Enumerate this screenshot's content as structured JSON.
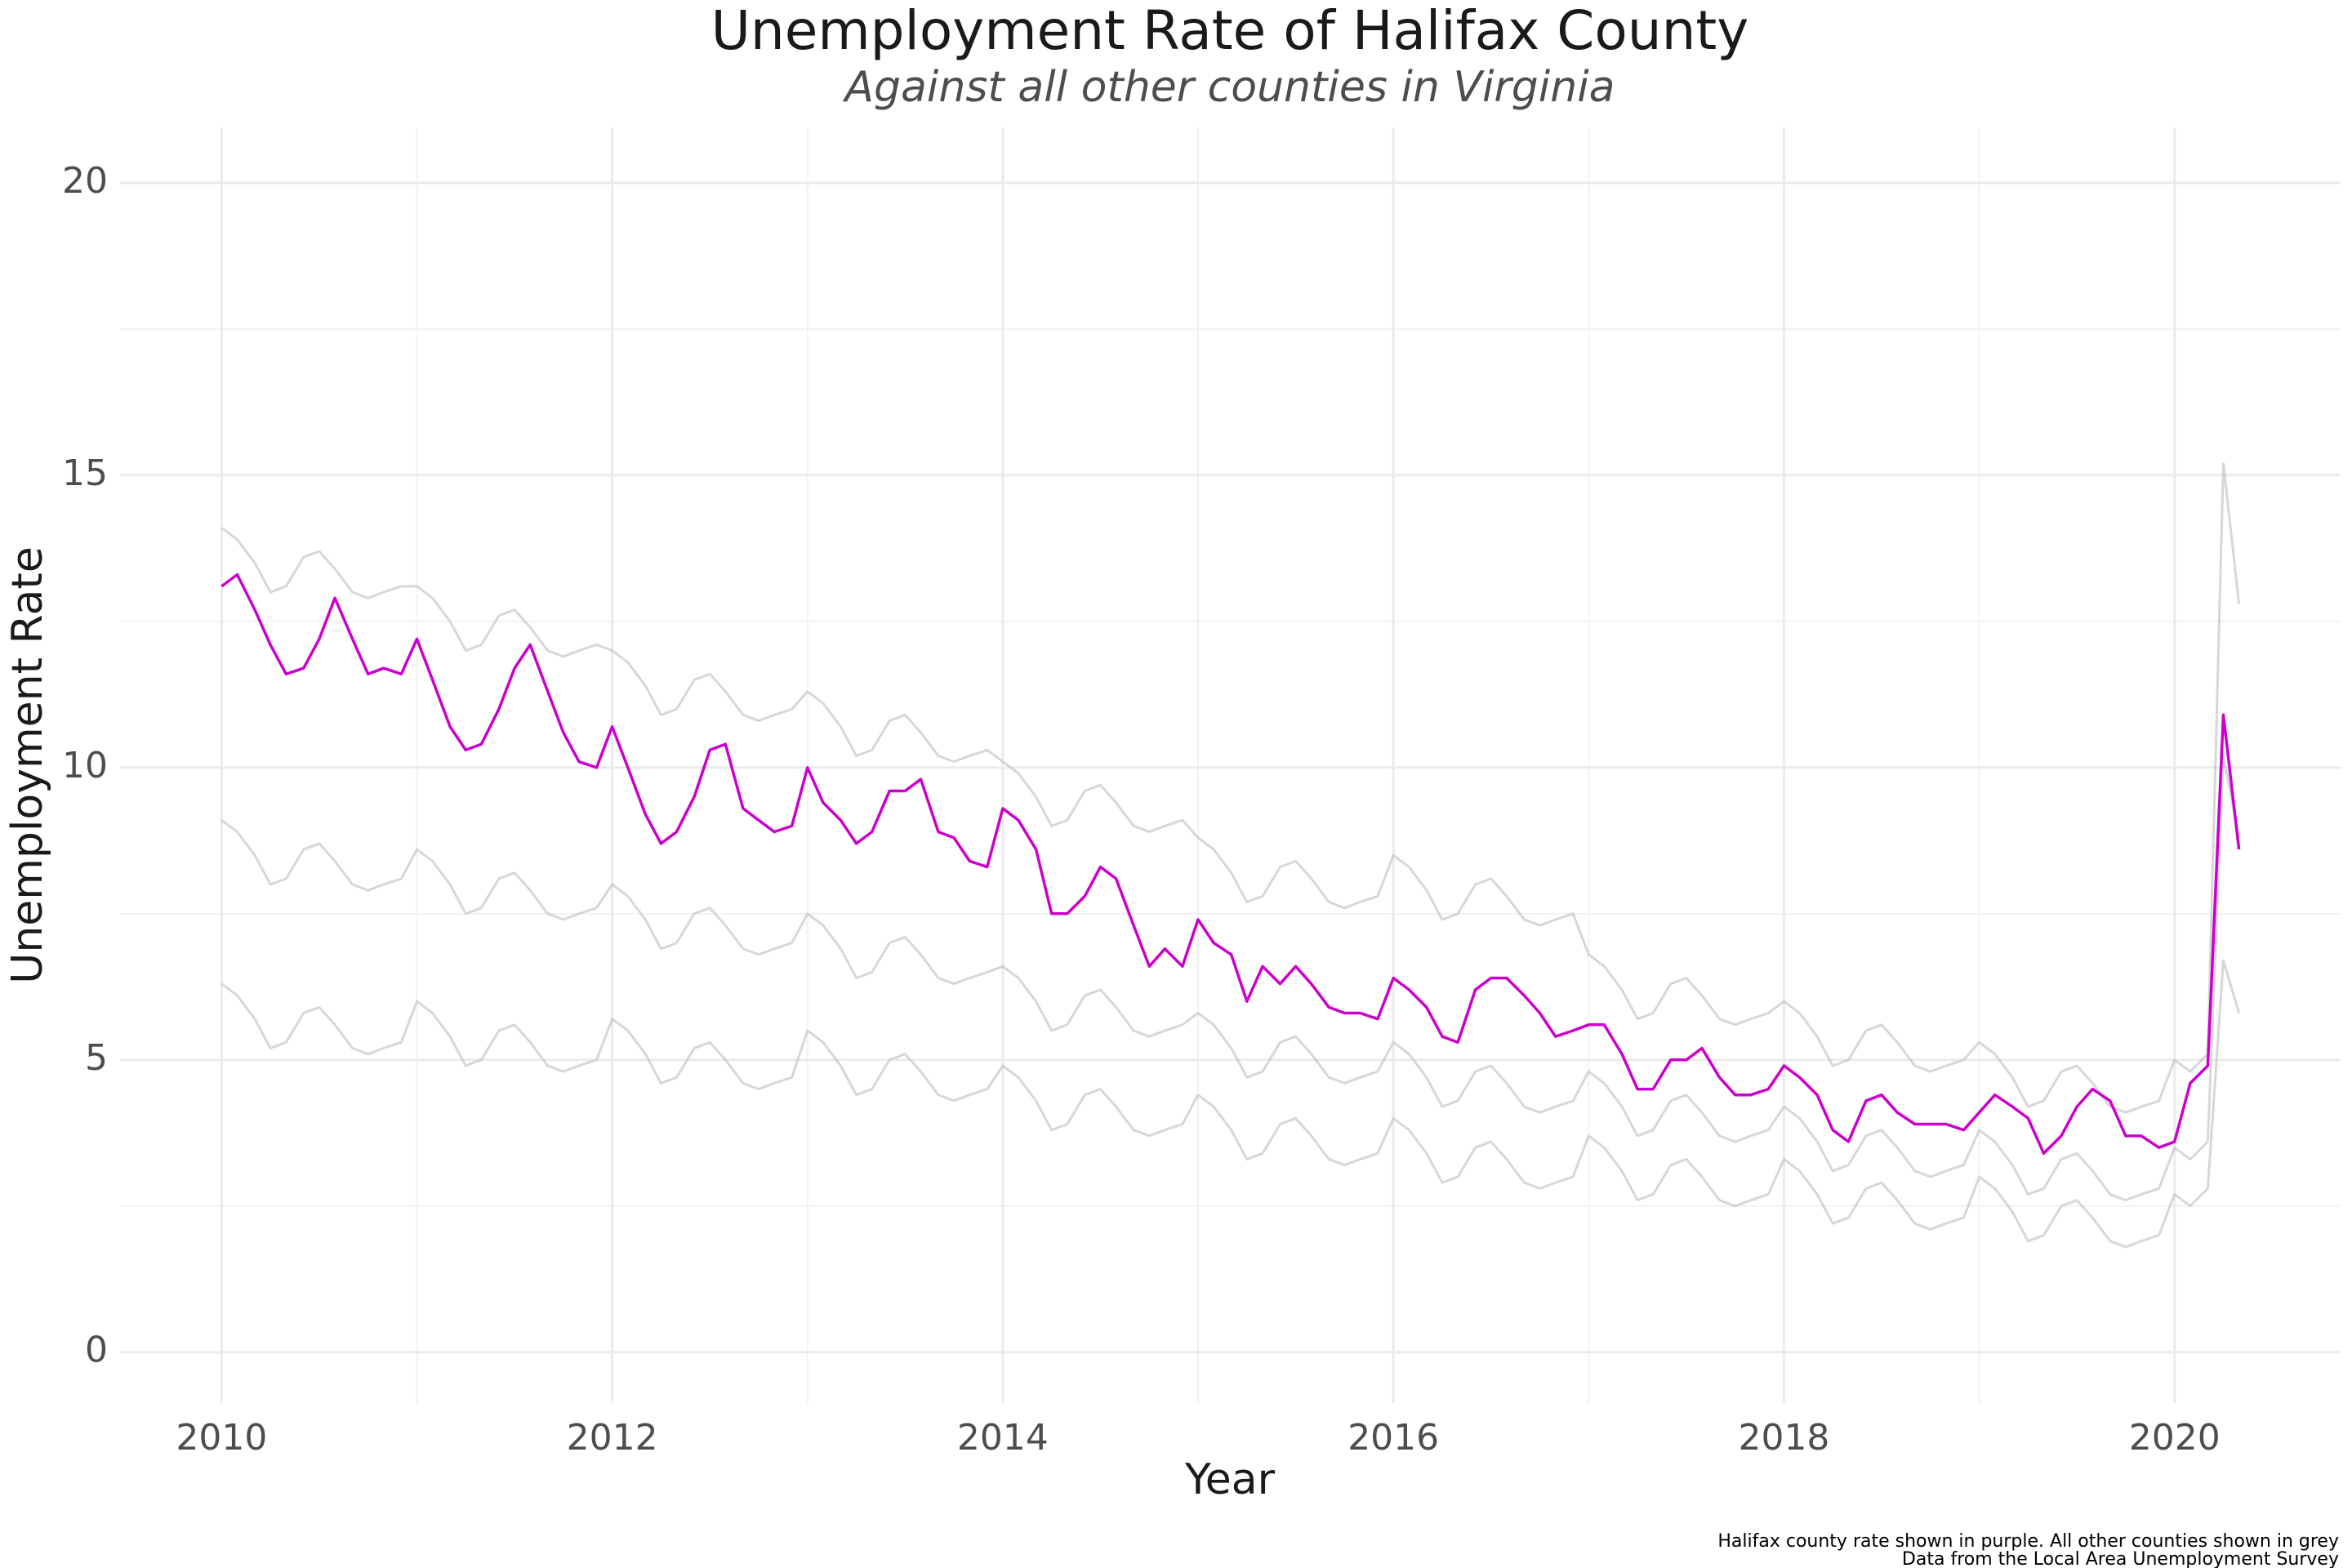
{
  "chart_data": {
    "type": "line",
    "title": "Unemployment Rate of Halifax County",
    "subtitle": "Against all other counties in Virginia",
    "x_label": "Year",
    "y_label": "Unemployment Rate",
    "caption": [
      "Halifax county rate shown in purple. All other counties shown in grey",
      "Data from the Local Area Unemployment Survey"
    ],
    "xlim": [
      2009.48,
      2020.85
    ],
    "ylim": [
      -0.87,
      20.95
    ],
    "xticks": [
      2010,
      2012,
      2014,
      2016,
      2018,
      2020
    ],
    "yticks": [
      0,
      5,
      10,
      15,
      20
    ],
    "xminor": [
      2011,
      2013,
      2015,
      2017,
      2019
    ],
    "yminor": [
      2.5,
      7.5,
      12.5,
      17.5
    ],
    "grid": true,
    "x": [
      2010,
      2010.08,
      2010.17,
      2010.25,
      2010.33,
      2010.42,
      2010.5,
      2010.58,
      2010.67,
      2010.75,
      2010.83,
      2010.92,
      2011,
      2011.08,
      2011.17,
      2011.25,
      2011.33,
      2011.42,
      2011.5,
      2011.58,
      2011.67,
      2011.75,
      2011.83,
      2011.92,
      2012,
      2012.08,
      2012.17,
      2012.25,
      2012.33,
      2012.42,
      2012.5,
      2012.58,
      2012.67,
      2012.75,
      2012.83,
      2012.92,
      2013,
      2013.08,
      2013.17,
      2013.25,
      2013.33,
      2013.42,
      2013.5,
      2013.58,
      2013.67,
      2013.75,
      2013.83,
      2013.92,
      2014,
      2014.08,
      2014.17,
      2014.25,
      2014.33,
      2014.42,
      2014.5,
      2014.58,
      2014.67,
      2014.75,
      2014.83,
      2014.92,
      2015,
      2015.08,
      2015.17,
      2015.25,
      2015.33,
      2015.42,
      2015.5,
      2015.58,
      2015.67,
      2015.75,
      2015.83,
      2015.92,
      2016,
      2016.08,
      2016.17,
      2016.25,
      2016.33,
      2016.42,
      2016.5,
      2016.58,
      2016.67,
      2016.75,
      2016.83,
      2016.92,
      2017,
      2017.08,
      2017.17,
      2017.25,
      2017.33,
      2017.42,
      2017.5,
      2017.58,
      2017.67,
      2017.75,
      2017.83,
      2017.92,
      2018,
      2018.08,
      2018.17,
      2018.25,
      2018.33,
      2018.42,
      2018.5,
      2018.58,
      2018.67,
      2018.75,
      2018.83,
      2018.92,
      2019,
      2019.08,
      2019.17,
      2019.25,
      2019.33,
      2019.42,
      2019.5,
      2019.58,
      2019.67,
      2019.75,
      2019.83,
      2019.92,
      2020,
      2020.08,
      2020.17,
      2020.25,
      2020.33
    ],
    "series": [
      {
        "color": "#bdbdbd",
        "values": [
          14.1,
          13.9,
          13.5,
          13.0,
          13.1,
          13.6,
          13.7,
          13.4,
          13.0,
          12.9,
          13.0,
          13.1,
          13.1,
          12.9,
          12.5,
          12.0,
          12.1,
          12.6,
          12.7,
          12.4,
          12.0,
          11.9,
          12.0,
          12.1,
          12.0,
          11.8,
          11.4,
          10.9,
          11.0,
          11.5,
          11.6,
          11.3,
          10.9,
          10.8,
          10.9,
          11.0,
          11.3,
          11.1,
          10.7,
          10.2,
          10.3,
          10.8,
          10.9,
          10.6,
          10.2,
          10.1,
          10.2,
          10.3,
          10.1,
          9.9,
          9.5,
          9.0,
          9.1,
          9.6,
          9.7,
          9.4,
          9.0,
          8.9,
          9.0,
          9.1,
          8.8,
          8.6,
          8.2,
          7.7,
          7.8,
          8.3,
          8.4,
          8.1,
          7.7,
          7.6,
          7.7,
          7.8,
          8.5,
          8.3,
          7.9,
          7.4,
          7.5,
          8.0,
          8.1,
          7.8,
          7.4,
          7.3,
          7.4,
          7.5,
          6.8,
          6.6,
          6.2,
          5.7,
          5.8,
          6.3,
          6.4,
          6.1,
          5.7,
          5.6,
          5.7,
          5.8,
          6.0,
          5.8,
          5.4,
          4.9,
          5.0,
          5.5,
          5.6,
          5.3,
          4.9,
          4.8,
          4.9,
          5.0,
          5.3,
          5.1,
          4.7,
          4.2,
          4.3,
          4.8,
          4.9,
          4.6,
          4.2,
          4.1,
          4.2,
          4.3,
          5.0,
          4.8,
          5.1,
          15.2,
          12.8
        ]
      },
      {
        "color": "#bdbdbd",
        "values": [
          9.1,
          8.9,
          8.5,
          8.0,
          8.1,
          8.6,
          8.7,
          8.4,
          8.0,
          7.9,
          8.0,
          8.1,
          8.6,
          8.4,
          8.0,
          7.5,
          7.6,
          8.1,
          8.2,
          7.9,
          7.5,
          7.4,
          7.5,
          7.6,
          8.0,
          7.8,
          7.4,
          6.9,
          7.0,
          7.5,
          7.6,
          7.3,
          6.9,
          6.8,
          6.9,
          7.0,
          7.5,
          7.3,
          6.9,
          6.4,
          6.5,
          7.0,
          7.1,
          6.8,
          6.4,
          6.3,
          6.4,
          6.5,
          6.6,
          6.4,
          6.0,
          5.5,
          5.6,
          6.1,
          6.2,
          5.9,
          5.5,
          5.4,
          5.5,
          5.6,
          5.8,
          5.6,
          5.2,
          4.7,
          4.8,
          5.3,
          5.4,
          5.1,
          4.7,
          4.6,
          4.7,
          4.8,
          5.3,
          5.1,
          4.7,
          4.2,
          4.3,
          4.8,
          4.9,
          4.6,
          4.2,
          4.1,
          4.2,
          4.3,
          4.8,
          4.6,
          4.2,
          3.7,
          3.8,
          4.3,
          4.4,
          4.1,
          3.7,
          3.6,
          3.7,
          3.8,
          4.2,
          4.0,
          3.6,
          3.1,
          3.2,
          3.7,
          3.8,
          3.5,
          3.1,
          3.0,
          3.1,
          3.2,
          3.8,
          3.6,
          3.2,
          2.7,
          2.8,
          3.3,
          3.4,
          3.1,
          2.7,
          2.6,
          2.7,
          2.8,
          3.5,
          3.3,
          3.6,
          10.2,
          8.8
        ]
      },
      {
        "color": "#bdbdbd",
        "values": [
          6.3,
          6.1,
          5.7,
          5.2,
          5.3,
          5.8,
          5.9,
          5.6,
          5.2,
          5.1,
          5.2,
          5.3,
          6.0,
          5.8,
          5.4,
          4.9,
          5.0,
          5.5,
          5.6,
          5.3,
          4.9,
          4.8,
          4.9,
          5.0,
          5.7,
          5.5,
          5.1,
          4.6,
          4.7,
          5.2,
          5.3,
          5.0,
          4.6,
          4.5,
          4.6,
          4.7,
          5.5,
          5.3,
          4.9,
          4.4,
          4.5,
          5.0,
          5.1,
          4.8,
          4.4,
          4.3,
          4.4,
          4.5,
          4.9,
          4.7,
          4.3,
          3.8,
          3.9,
          4.4,
          4.5,
          4.2,
          3.8,
          3.7,
          3.8,
          3.9,
          4.4,
          4.2,
          3.8,
          3.3,
          3.4,
          3.9,
          4.0,
          3.7,
          3.3,
          3.2,
          3.3,
          3.4,
          4.0,
          3.8,
          3.4,
          2.9,
          3.0,
          3.5,
          3.6,
          3.3,
          2.9,
          2.8,
          2.9,
          3.0,
          3.7,
          3.5,
          3.1,
          2.6,
          2.7,
          3.2,
          3.3,
          3.0,
          2.6,
          2.5,
          2.6,
          2.7,
          3.3,
          3.1,
          2.7,
          2.2,
          2.3,
          2.8,
          2.9,
          2.6,
          2.2,
          2.1,
          2.2,
          2.3,
          3.0,
          2.8,
          2.4,
          1.9,
          2.0,
          2.5,
          2.6,
          2.3,
          1.9,
          1.8,
          1.9,
          2.0,
          2.7,
          2.5,
          2.8,
          6.7,
          5.8
        ]
      },
      {
        "color": "#cc00cc",
        "values": [
          13.1,
          13.3,
          12.7,
          12.1,
          11.6,
          11.7,
          12.2,
          12.9,
          12.2,
          11.6,
          11.7,
          11.6,
          12.2,
          11.5,
          10.7,
          10.3,
          10.4,
          11.0,
          11.7,
          12.1,
          11.3,
          10.6,
          10.1,
          10.0,
          10.7,
          10.0,
          9.2,
          8.7,
          8.9,
          9.5,
          10.3,
          10.4,
          9.3,
          9.1,
          8.9,
          9.0,
          10.0,
          9.4,
          9.1,
          8.7,
          8.9,
          9.6,
          9.6,
          9.8,
          8.9,
          8.8,
          8.4,
          8.3,
          9.3,
          9.1,
          8.6,
          7.5,
          7.5,
          7.8,
          8.3,
          8.1,
          7.3,
          6.6,
          6.9,
          6.6,
          7.4,
          7.0,
          6.8,
          6.0,
          6.6,
          6.3,
          6.6,
          6.3,
          5.9,
          5.8,
          5.8,
          5.7,
          6.4,
          6.2,
          5.9,
          5.4,
          5.3,
          6.2,
          6.4,
          6.4,
          6.1,
          5.8,
          5.4,
          5.5,
          5.6,
          5.6,
          5.1,
          4.5,
          4.5,
          5.0,
          5.0,
          5.2,
          4.7,
          4.4,
          4.4,
          4.5,
          4.9,
          4.7,
          4.4,
          3.8,
          3.6,
          4.3,
          4.4,
          4.1,
          3.9,
          3.9,
          3.9,
          3.8,
          4.1,
          4.4,
          4.2,
          4.0,
          3.4,
          3.7,
          4.2,
          4.5,
          4.3,
          3.7,
          3.7,
          3.5,
          3.6,
          4.6,
          4.9,
          10.9,
          8.6
        ]
      }
    ]
  }
}
